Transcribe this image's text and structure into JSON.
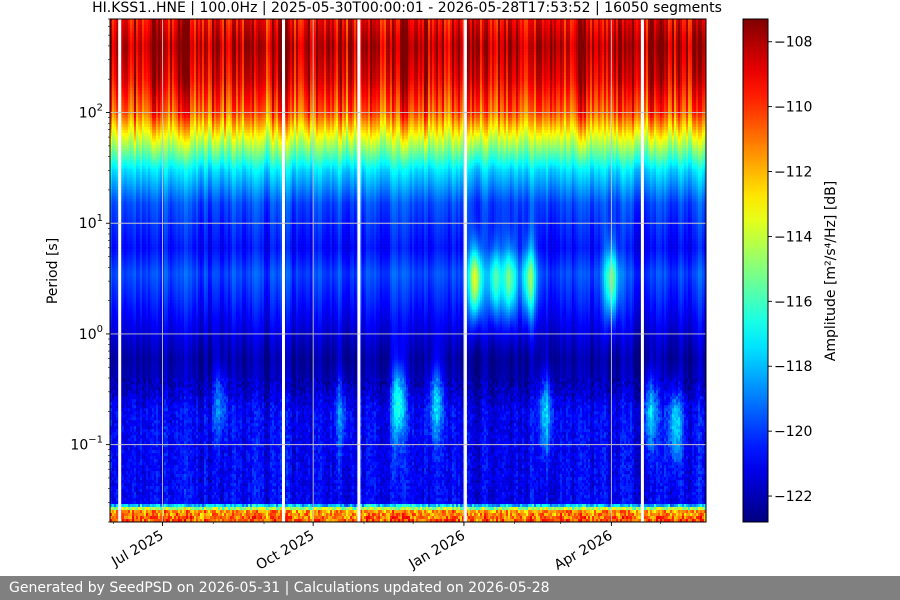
{
  "chart_data": {
    "type": "heatmap",
    "title": "HI.KSS1..HNE | 100.0Hz | 2025-05-30T00:00:01 - 2026-05-28T17:53:52 | 16050 segments",
    "ylabel": "Period [s]",
    "colorbar_label": "Amplitude [m²/s⁴/Hz] [dB]",
    "y_scale": "log",
    "y_inverted": true,
    "ylim": [
      0.02,
      700
    ],
    "y_ticks": [
      {
        "value": 0.1,
        "label": "10",
        "exp": "−1"
      },
      {
        "value": 1,
        "label": "10",
        "exp": "0"
      },
      {
        "value": 10,
        "label": "10",
        "exp": "1"
      },
      {
        "value": 100,
        "label": "10",
        "exp": "2"
      }
    ],
    "x_range": [
      "2025-05-30",
      "2026-05-28"
    ],
    "x_ticks": [
      {
        "date": "2025-07-01",
        "label": "Jul 2025"
      },
      {
        "date": "2025-10-01",
        "label": "Oct 2025"
      },
      {
        "date": "2026-01-01",
        "label": "Jan 2026"
      },
      {
        "date": "2026-04-01",
        "label": "Apr 2026"
      }
    ],
    "color_range": [
      -122.8,
      -107.3
    ],
    "colorbar_ticks": [
      -108,
      -110,
      -112,
      -114,
      -116,
      -118,
      -120,
      -122
    ],
    "colormap": "jet",
    "grid": true,
    "profile": [
      {
        "period": 0.02,
        "db": -110.5
      },
      {
        "period": 0.025,
        "db": -111.5
      },
      {
        "period": 0.03,
        "db": -121.0
      },
      {
        "period": 0.08,
        "db": -121.0
      },
      {
        "period": 0.2,
        "db": -121.0
      },
      {
        "period": 0.35,
        "db": -122.0
      },
      {
        "period": 0.6,
        "db": -122.3
      },
      {
        "period": 1.0,
        "db": -121.5
      },
      {
        "period": 2.0,
        "db": -120.5
      },
      {
        "period": 3.5,
        "db": -119.8
      },
      {
        "period": 6.0,
        "db": -120.8
      },
      {
        "period": 15,
        "db": -119.8
      },
      {
        "period": 30,
        "db": -117.5
      },
      {
        "period": 60,
        "db": -113.5
      },
      {
        "period": 100,
        "db": -110.5
      },
      {
        "period": 200,
        "db": -108.8
      },
      {
        "period": 400,
        "db": -108.0
      },
      {
        "period": 700,
        "db": -109.0
      }
    ],
    "events": [
      {
        "date": "2025-08-05",
        "period": 0.25,
        "db": 2.5
      },
      {
        "date": "2025-10-18",
        "period": 0.2,
        "db": 2.0
      },
      {
        "date": "2025-11-22",
        "period": 0.25,
        "db": 4.5
      },
      {
        "date": "2025-12-15",
        "period": 0.25,
        "db": 3.5
      },
      {
        "date": "2026-01-08",
        "period": 3.0,
        "db": 7.0
      },
      {
        "date": "2026-01-20",
        "period": 3.0,
        "db": 4.5
      },
      {
        "date": "2026-01-29",
        "period": 3.0,
        "db": 5.0
      },
      {
        "date": "2026-02-10",
        "period": 3.0,
        "db": 5.0
      },
      {
        "date": "2026-02-20",
        "period": 0.2,
        "db": 3.5
      },
      {
        "date": "2026-04-01",
        "period": 3.0,
        "db": 5.0
      },
      {
        "date": "2026-04-25",
        "period": 0.2,
        "db": 3.5
      },
      {
        "date": "2026-05-10",
        "period": 0.15,
        "db": 4.0
      }
    ],
    "data_gaps": [
      "2025-06-04",
      "2025-09-12",
      "2025-10-28",
      "2026-01-01",
      "2026-04-19"
    ]
  },
  "footer": {
    "text": "Generated by SeedPSD on 2026-05-31 | Calculations updated on 2026-05-28"
  }
}
